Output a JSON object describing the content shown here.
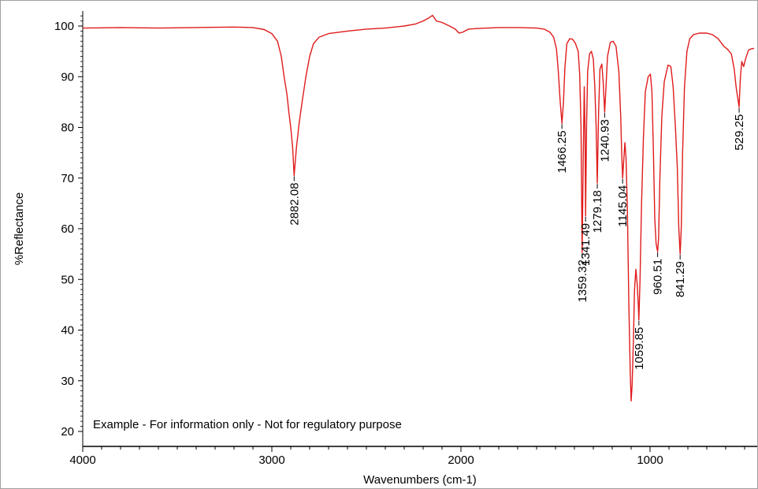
{
  "chart_data": {
    "type": "line",
    "xlabel": "Wavenumbers (cm-1)",
    "ylabel": "%Reflectance",
    "xlim": [
      4000,
      450
    ],
    "ylim": [
      19,
      103
    ],
    "x_reversed": true,
    "x_ticks": [
      4000,
      3000,
      2000,
      1000
    ],
    "y_ticks": [
      20,
      30,
      40,
      50,
      60,
      70,
      80,
      90,
      100
    ],
    "grid": false,
    "note": "Example - For information only - Not for regulatory purpose",
    "series": [
      {
        "color": "#e01b1b",
        "points": [
          [
            4000,
            99.6
          ],
          [
            3800,
            99.7
          ],
          [
            3600,
            99.6
          ],
          [
            3400,
            99.7
          ],
          [
            3200,
            99.8
          ],
          [
            3100,
            99.7
          ],
          [
            3040,
            99.3
          ],
          [
            3000,
            98.5
          ],
          [
            2970,
            97.0
          ],
          [
            2950,
            94.0
          ],
          [
            2935,
            90.0
          ],
          [
            2920,
            86.5
          ],
          [
            2910,
            83.0
          ],
          [
            2900,
            80.0
          ],
          [
            2890,
            76.0
          ],
          [
            2882,
            70.5
          ],
          [
            2870,
            76.0
          ],
          [
            2855,
            81.0
          ],
          [
            2840,
            85.0
          ],
          [
            2820,
            90.0
          ],
          [
            2800,
            94.0
          ],
          [
            2780,
            96.5
          ],
          [
            2750,
            97.8
          ],
          [
            2700,
            98.5
          ],
          [
            2600,
            99.0
          ],
          [
            2500,
            99.4
          ],
          [
            2400,
            99.6
          ],
          [
            2300,
            100.0
          ],
          [
            2240,
            100.4
          ],
          [
            2200,
            101.0
          ],
          [
            2170,
            101.6
          ],
          [
            2150,
            102.1
          ],
          [
            2130,
            101.0
          ],
          [
            2100,
            100.7
          ],
          [
            2060,
            100.0
          ],
          [
            2030,
            99.4
          ],
          [
            2010,
            98.6
          ],
          [
            1990,
            98.8
          ],
          [
            1960,
            99.4
          ],
          [
            1920,
            99.5
          ],
          [
            1800,
            99.7
          ],
          [
            1700,
            99.7
          ],
          [
            1600,
            99.6
          ],
          [
            1560,
            99.4
          ],
          [
            1530,
            98.8
          ],
          [
            1510,
            97.8
          ],
          [
            1495,
            95.5
          ],
          [
            1485,
            91.0
          ],
          [
            1475,
            85.0
          ],
          [
            1466,
            80.8
          ],
          [
            1458,
            85.0
          ],
          [
            1450,
            92.0
          ],
          [
            1440,
            96.5
          ],
          [
            1425,
            97.5
          ],
          [
            1410,
            97.4
          ],
          [
            1395,
            96.6
          ],
          [
            1380,
            95.0
          ],
          [
            1372,
            90.5
          ],
          [
            1365,
            80.0
          ],
          [
            1359,
            55.3
          ],
          [
            1353,
            75.0
          ],
          [
            1348,
            88.0
          ],
          [
            1344,
            80.0
          ],
          [
            1341,
            62.5
          ],
          [
            1336,
            80.0
          ],
          [
            1330,
            91.0
          ],
          [
            1320,
            94.5
          ],
          [
            1310,
            95.0
          ],
          [
            1300,
            93.5
          ],
          [
            1292,
            88.0
          ],
          [
            1285,
            80.0
          ],
          [
            1279,
            69.0
          ],
          [
            1272,
            83.0
          ],
          [
            1265,
            91.5
          ],
          [
            1255,
            92.5
          ],
          [
            1248,
            89.0
          ],
          [
            1240,
            83.0
          ],
          [
            1233,
            88.0
          ],
          [
            1225,
            94.0
          ],
          [
            1210,
            96.8
          ],
          [
            1195,
            97.0
          ],
          [
            1180,
            96.0
          ],
          [
            1165,
            91.0
          ],
          [
            1155,
            82.0
          ],
          [
            1150,
            75.0
          ],
          [
            1145,
            70.0
          ],
          [
            1140,
            73.0
          ],
          [
            1133,
            77.0
          ],
          [
            1127,
            74.0
          ],
          [
            1120,
            64.0
          ],
          [
            1112,
            45.0
          ],
          [
            1105,
            32.0
          ],
          [
            1100,
            26.0
          ],
          [
            1095,
            29.0
          ],
          [
            1088,
            38.0
          ],
          [
            1082,
            48.0
          ],
          [
            1075,
            52.0
          ],
          [
            1068,
            49.0
          ],
          [
            1062,
            45.0
          ],
          [
            1059,
            42.0
          ],
          [
            1053,
            50.0
          ],
          [
            1045,
            65.0
          ],
          [
            1035,
            78.0
          ],
          [
            1025,
            87.0
          ],
          [
            1010,
            90.0
          ],
          [
            998,
            90.5
          ],
          [
            990,
            87.0
          ],
          [
            982,
            75.0
          ],
          [
            975,
            62.0
          ],
          [
            968,
            57.0
          ],
          [
            960,
            55.5
          ],
          [
            955,
            58.0
          ],
          [
            948,
            70.0
          ],
          [
            938,
            82.0
          ],
          [
            925,
            89.0
          ],
          [
            905,
            92.3
          ],
          [
            890,
            92.0
          ],
          [
            878,
            88.0
          ],
          [
            866,
            80.0
          ],
          [
            856,
            72.0
          ],
          [
            848,
            60.0
          ],
          [
            841,
            55.0
          ],
          [
            835,
            60.0
          ],
          [
            828,
            75.0
          ],
          [
            818,
            88.0
          ],
          [
            805,
            95.0
          ],
          [
            790,
            97.5
          ],
          [
            770,
            98.3
          ],
          [
            740,
            98.6
          ],
          [
            700,
            98.6
          ],
          [
            670,
            98.3
          ],
          [
            640,
            97.5
          ],
          [
            610,
            96.0
          ],
          [
            590,
            95.4
          ],
          [
            570,
            94.5
          ],
          [
            555,
            91.5
          ],
          [
            545,
            88.0
          ],
          [
            535,
            85.5
          ],
          [
            529,
            84.0
          ],
          [
            522,
            90.0
          ],
          [
            515,
            93.0
          ],
          [
            505,
            92.0
          ],
          [
            495,
            93.5
          ],
          [
            480,
            95.2
          ],
          [
            465,
            95.5
          ],
          [
            450,
            95.6
          ]
        ]
      }
    ],
    "peaks": [
      {
        "label": "2882.08",
        "x": 2882,
        "y": 70.5
      },
      {
        "label": "1466.25",
        "x": 1466,
        "y": 80.8
      },
      {
        "label": "1359.32",
        "x": 1359,
        "y": 55.3
      },
      {
        "label": "1341.49",
        "x": 1341,
        "y": 62.5
      },
      {
        "label": "1279.18",
        "x": 1279,
        "y": 69.0
      },
      {
        "label": "1240.93",
        "x": 1240,
        "y": 83.0
      },
      {
        "label": "1145.04",
        "x": 1145,
        "y": 70.0
      },
      {
        "label": "1059.85",
        "x": 1059,
        "y": 42.0
      },
      {
        "label": "960.51",
        "x": 960,
        "y": 55.5
      },
      {
        "label": "841.29",
        "x": 841,
        "y": 55.0
      },
      {
        "label": "529.25",
        "x": 529,
        "y": 84.0
      }
    ]
  }
}
